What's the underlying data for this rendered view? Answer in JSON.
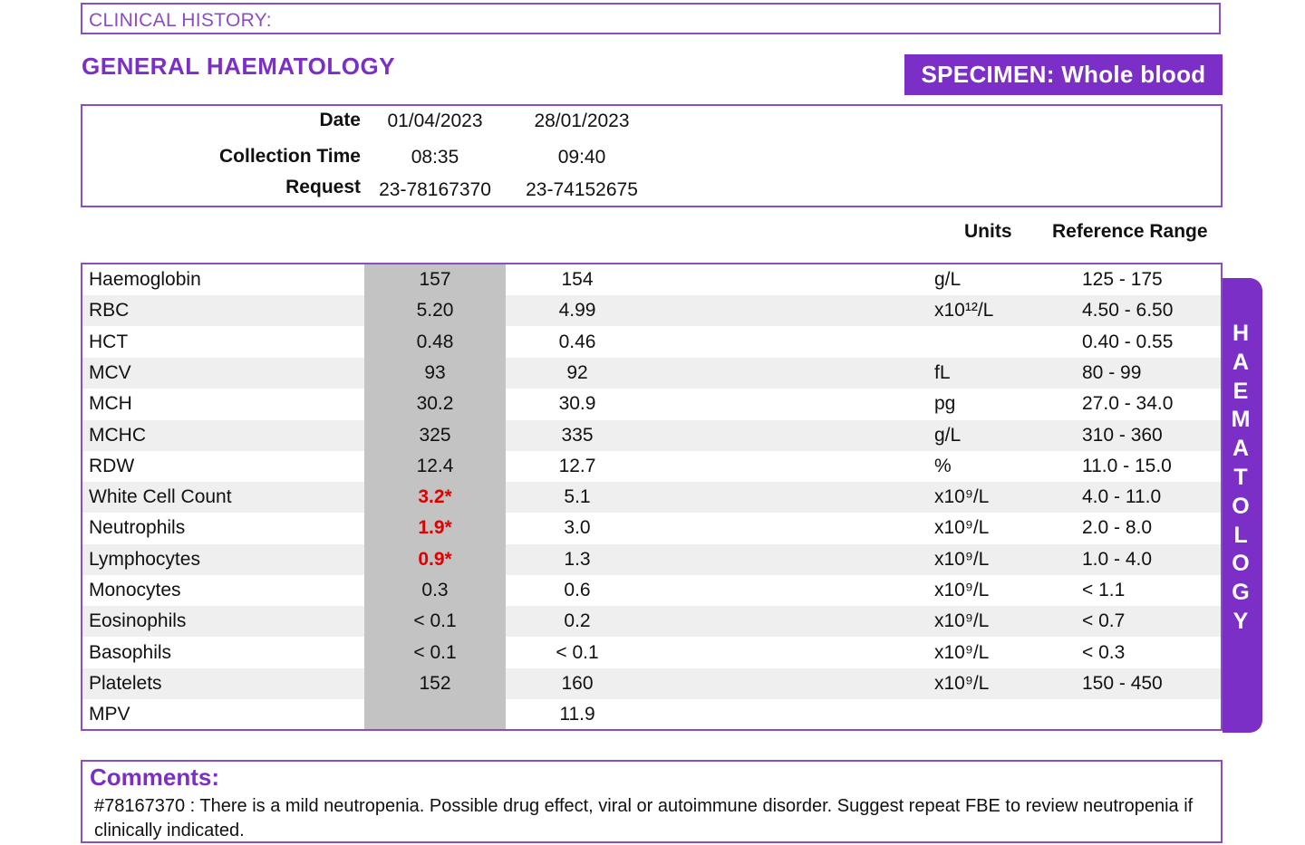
{
  "clinical_history_label": "CLINICAL HISTORY:",
  "section_title": "GENERAL HAEMATOLOGY",
  "specimen": "SPECIMEN: Whole blood",
  "header": {
    "date_label": "Date",
    "collection_label": "Collection Time",
    "request_label": "Request",
    "dates": [
      "01/04/2023",
      "28/01/2023"
    ],
    "times": [
      "08:35",
      "09:40"
    ],
    "requests": [
      "23-78167370",
      "23-74152675"
    ]
  },
  "columns": {
    "units": "Units",
    "reference": "Reference Range"
  },
  "rows": [
    {
      "name": "Haemoglobin",
      "v1": "157",
      "v2": "154",
      "unit": "g/L",
      "ref": "125 - 175",
      "abn": false
    },
    {
      "name": "RBC",
      "v1": "5.20",
      "v2": "4.99",
      "unit": "x10¹²/L",
      "ref": "4.50 - 6.50",
      "abn": false
    },
    {
      "name": "HCT",
      "v1": "0.48",
      "v2": "0.46",
      "unit": "",
      "ref": "0.40 - 0.55",
      "abn": false
    },
    {
      "name": "MCV",
      "v1": "93",
      "v2": "92",
      "unit": "fL",
      "ref": "80 - 99",
      "abn": false
    },
    {
      "name": "MCH",
      "v1": "30.2",
      "v2": "30.9",
      "unit": "pg",
      "ref": "27.0 - 34.0",
      "abn": false
    },
    {
      "name": "MCHC",
      "v1": "325",
      "v2": "335",
      "unit": "g/L",
      "ref": "310 - 360",
      "abn": false
    },
    {
      "name": "RDW",
      "v1": "12.4",
      "v2": "12.7",
      "unit": "%",
      "ref": "11.0 - 15.0",
      "abn": false
    },
    {
      "name": "White Cell Count",
      "v1": "3.2*",
      "v2": "5.1",
      "unit": "x10⁹/L",
      "ref": "4.0 - 11.0",
      "abn": true
    },
    {
      "name": "Neutrophils",
      "v1": "1.9*",
      "v2": "3.0",
      "unit": "x10⁹/L",
      "ref": "2.0 - 8.0",
      "abn": true
    },
    {
      "name": "Lymphocytes",
      "v1": "0.9*",
      "v2": "1.3",
      "unit": "x10⁹/L",
      "ref": "1.0 - 4.0",
      "abn": true
    },
    {
      "name": "Monocytes",
      "v1": "0.3",
      "v2": "0.6",
      "unit": "x10⁹/L",
      "ref": "< 1.1",
      "abn": false
    },
    {
      "name": "Eosinophils",
      "v1": "< 0.1",
      "v2": "0.2",
      "unit": "x10⁹/L",
      "ref": "< 0.7",
      "abn": false
    },
    {
      "name": "Basophils",
      "v1": "< 0.1",
      "v2": "< 0.1",
      "unit": "x10⁹/L",
      "ref": "< 0.3",
      "abn": false
    },
    {
      "name": "Platelets",
      "v1": "152",
      "v2": "160",
      "unit": "x10⁹/L",
      "ref": "150 - 450",
      "abn": false
    },
    {
      "name": "MPV",
      "v1": "",
      "v2": "11.9",
      "unit": "",
      "ref": "",
      "abn": false
    }
  ],
  "side_tab": "HAEMATOLOGY",
  "comments": {
    "title": "Comments:",
    "text": "#78167370 : There is a mild neutropenia. Possible drug effect, viral or autoimmune disorder. Suggest repeat FBE to review neutropenia if clinically indicated."
  },
  "colors": {
    "accent": "#7b2fc7",
    "abnormal": "#e00000",
    "shade": "#c3c3c3"
  }
}
